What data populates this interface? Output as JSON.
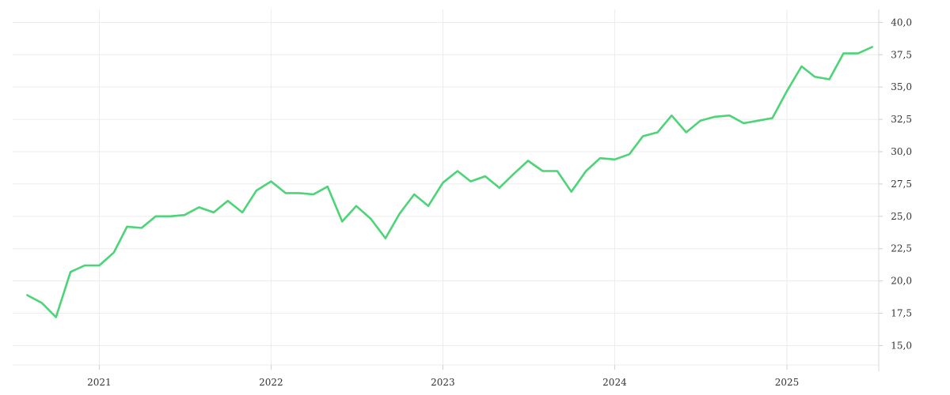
{
  "colors": {
    "line": "#4cd477",
    "grid": "#ececec",
    "text": "#333333",
    "background": "#ffffff"
  },
  "chart_data": {
    "type": "line",
    "title": "",
    "xlabel": "",
    "ylabel": "",
    "y_axis_position": "right",
    "decimal_separator": ",",
    "grid": true,
    "legend": "none",
    "ylim": [
      13.5,
      41.0
    ],
    "xlim": [
      "2020-07-01",
      "2025-07-15"
    ],
    "y_ticks": [
      15.0,
      17.5,
      20.0,
      22.5,
      25.0,
      27.5,
      30.0,
      32.5,
      35.0,
      37.5,
      40.0
    ],
    "y_tick_labels": [
      "15,0",
      "17,5",
      "20,0",
      "22,5",
      "25,0",
      "27,5",
      "30,0",
      "32,5",
      "35,0",
      "37,5",
      "40,0"
    ],
    "x_ticks": [
      "2021-01-01",
      "2022-01-01",
      "2023-01-01",
      "2024-01-01",
      "2025-01-01"
    ],
    "x_tick_labels": [
      "2021",
      "2022",
      "2023",
      "2024",
      "2025"
    ],
    "series": [
      {
        "x": [
          "2020-08-01",
          "2020-09-01",
          "2020-10-01",
          "2020-11-01",
          "2020-12-01",
          "2021-01-01",
          "2021-02-01",
          "2021-03-01",
          "2021-04-01",
          "2021-05-01",
          "2021-06-01",
          "2021-07-01",
          "2021-08-01",
          "2021-09-01",
          "2021-10-01",
          "2021-11-01",
          "2021-12-01",
          "2022-01-01",
          "2022-02-01",
          "2022-03-01",
          "2022-04-01",
          "2022-05-01",
          "2022-06-01",
          "2022-07-01",
          "2022-08-01",
          "2022-09-01",
          "2022-10-01",
          "2022-11-01",
          "2022-12-01",
          "2023-01-01",
          "2023-02-01",
          "2023-03-01",
          "2023-04-01",
          "2023-05-01",
          "2023-06-01",
          "2023-07-01",
          "2023-08-01",
          "2023-09-01",
          "2023-10-01",
          "2023-11-01",
          "2023-12-01",
          "2024-01-01",
          "2024-02-01",
          "2024-03-01",
          "2024-04-01",
          "2024-05-01",
          "2024-06-01",
          "2024-07-01",
          "2024-08-01",
          "2024-09-01",
          "2024-10-01",
          "2024-11-01",
          "2024-12-01",
          "2025-01-01",
          "2025-02-01",
          "2025-03-01",
          "2025-04-01",
          "2025-05-01",
          "2025-06-01",
          "2025-07-01"
        ],
        "y": [
          18.9,
          18.3,
          17.2,
          20.7,
          21.2,
          21.2,
          22.2,
          24.2,
          24.1,
          25.0,
          25.0,
          25.1,
          25.7,
          25.3,
          26.2,
          25.3,
          27.0,
          27.7,
          26.8,
          26.8,
          26.7,
          27.3,
          24.6,
          25.8,
          24.8,
          23.3,
          25.2,
          26.7,
          25.8,
          27.6,
          28.5,
          27.7,
          28.1,
          27.2,
          28.3,
          29.3,
          28.5,
          28.5,
          26.9,
          28.5,
          29.5,
          29.4,
          29.8,
          31.2,
          31.5,
          32.8,
          31.5,
          32.4,
          32.7,
          32.8,
          32.2,
          32.4,
          32.6,
          34.7,
          36.6,
          35.8,
          35.6,
          37.6,
          37.6,
          38.1
        ]
      }
    ]
  }
}
